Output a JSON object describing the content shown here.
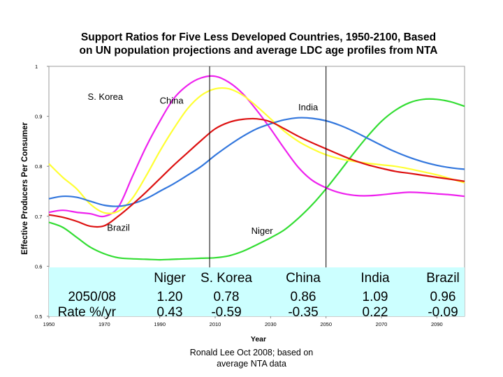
{
  "chart_data": {
    "type": "line",
    "title_line1": "Support Ratios for Five Less Developed Countries, 1950-2100, Based",
    "title_line2": "on UN population projections and average LDC age profiles from NTA",
    "xlabel": "Year",
    "ylabel": "Effective Producers Per Consumer",
    "xlim": [
      1950,
      2100
    ],
    "ylim": [
      0.5,
      1.0
    ],
    "x_ticks": [
      1950,
      1970,
      1990,
      2010,
      2030,
      2050,
      2070,
      2090
    ],
    "y_ticks": [
      0.5,
      0.6,
      0.7,
      0.8,
      0.9,
      1
    ],
    "vertical_lines": [
      2008,
      2050
    ],
    "series": [
      {
        "name": "Niger",
        "color": "#33dd33",
        "x": [
          1950,
          1955,
          1960,
          1965,
          1970,
          1975,
          1980,
          1985,
          1990,
          1995,
          2000,
          2005,
          2010,
          2015,
          2020,
          2025,
          2030,
          2035,
          2040,
          2045,
          2050,
          2055,
          2060,
          2065,
          2070,
          2075,
          2080,
          2085,
          2090,
          2095,
          2100
        ],
        "y": [
          0.688,
          0.678,
          0.658,
          0.638,
          0.625,
          0.617,
          0.615,
          0.614,
          0.613,
          0.614,
          0.615,
          0.616,
          0.617,
          0.621,
          0.63,
          0.643,
          0.657,
          0.673,
          0.696,
          0.723,
          0.755,
          0.79,
          0.826,
          0.86,
          0.89,
          0.912,
          0.927,
          0.934,
          0.934,
          0.929,
          0.92
        ]
      },
      {
        "name": "S. Korea",
        "color": "#ee22ee",
        "x": [
          1950,
          1955,
          1960,
          1965,
          1970,
          1975,
          1980,
          1985,
          1990,
          1995,
          2000,
          2005,
          2010,
          2015,
          2020,
          2025,
          2030,
          2035,
          2040,
          2045,
          2050,
          2055,
          2060,
          2065,
          2070,
          2075,
          2080,
          2085,
          2090,
          2095,
          2100
        ],
        "y": [
          0.708,
          0.712,
          0.708,
          0.705,
          0.7,
          0.718,
          0.778,
          0.838,
          0.89,
          0.935,
          0.962,
          0.977,
          0.98,
          0.968,
          0.945,
          0.912,
          0.875,
          0.835,
          0.798,
          0.772,
          0.757,
          0.747,
          0.742,
          0.741,
          0.743,
          0.746,
          0.748,
          0.747,
          0.745,
          0.743,
          0.74
        ]
      },
      {
        "name": "China",
        "color": "#ffff33",
        "x": [
          1950,
          1955,
          1960,
          1965,
          1970,
          1975,
          1980,
          1985,
          1990,
          1995,
          2000,
          2005,
          2010,
          2015,
          2020,
          2025,
          2030,
          2035,
          2040,
          2045,
          2050,
          2055,
          2060,
          2065,
          2070,
          2075,
          2080,
          2085,
          2090,
          2095,
          2100
        ],
        "y": [
          0.805,
          0.778,
          0.755,
          0.724,
          0.707,
          0.71,
          0.735,
          0.78,
          0.83,
          0.875,
          0.915,
          0.942,
          0.955,
          0.955,
          0.942,
          0.92,
          0.895,
          0.87,
          0.85,
          0.835,
          0.823,
          0.815,
          0.81,
          0.806,
          0.803,
          0.8,
          0.795,
          0.789,
          0.783,
          0.775,
          0.767
        ]
      },
      {
        "name": "India",
        "color": "#3377dd",
        "x": [
          1950,
          1955,
          1960,
          1965,
          1970,
          1975,
          1980,
          1985,
          1990,
          1995,
          2000,
          2005,
          2010,
          2015,
          2020,
          2025,
          2030,
          2035,
          2040,
          2045,
          2050,
          2055,
          2060,
          2065,
          2070,
          2075,
          2080,
          2085,
          2090,
          2095,
          2100
        ],
        "y": [
          0.735,
          0.74,
          0.738,
          0.73,
          0.722,
          0.72,
          0.725,
          0.735,
          0.75,
          0.765,
          0.782,
          0.8,
          0.822,
          0.842,
          0.86,
          0.875,
          0.885,
          0.893,
          0.897,
          0.896,
          0.891,
          0.882,
          0.87,
          0.856,
          0.842,
          0.829,
          0.818,
          0.809,
          0.802,
          0.797,
          0.794
        ]
      },
      {
        "name": "Brazil",
        "color": "#dd1111",
        "x": [
          1950,
          1955,
          1960,
          1965,
          1970,
          1975,
          1980,
          1985,
          1990,
          1995,
          2000,
          2005,
          2010,
          2015,
          2020,
          2025,
          2030,
          2035,
          2040,
          2045,
          2050,
          2055,
          2060,
          2065,
          2070,
          2075,
          2080,
          2085,
          2090,
          2095,
          2100
        ],
        "y": [
          0.703,
          0.698,
          0.69,
          0.68,
          0.681,
          0.7,
          0.723,
          0.748,
          0.775,
          0.802,
          0.827,
          0.852,
          0.875,
          0.888,
          0.894,
          0.895,
          0.889,
          0.875,
          0.86,
          0.847,
          0.835,
          0.823,
          0.812,
          0.803,
          0.796,
          0.79,
          0.786,
          0.782,
          0.778,
          0.774,
          0.77
        ]
      }
    ],
    "annotations": [
      {
        "text": "S. Korea",
        "x": 1964,
        "y": 0.933
      },
      {
        "text": "China",
        "x": 1990,
        "y": 0.925
      },
      {
        "text": "India",
        "x": 2040,
        "y": 0.912
      },
      {
        "text": "Brazil",
        "x": 1971,
        "y": 0.671
      },
      {
        "text": "Niger",
        "x": 2023,
        "y": 0.665
      }
    ],
    "table": {
      "background": "#ccffff",
      "columns": [
        "",
        "Niger",
        "S. Korea",
        "China",
        "India",
        "Brazil"
      ],
      "rows": [
        [
          "2050/08",
          "1.20",
          "0.78",
          "0.86",
          "1.09",
          "0.96"
        ],
        [
          "Rate %/yr",
          "0.43",
          "-0.59",
          "-0.35",
          "0.22",
          "-0.09"
        ]
      ]
    }
  },
  "credit_line1": "Ronald Lee Oct 2008; based on",
  "credit_line2": "average NTA data"
}
